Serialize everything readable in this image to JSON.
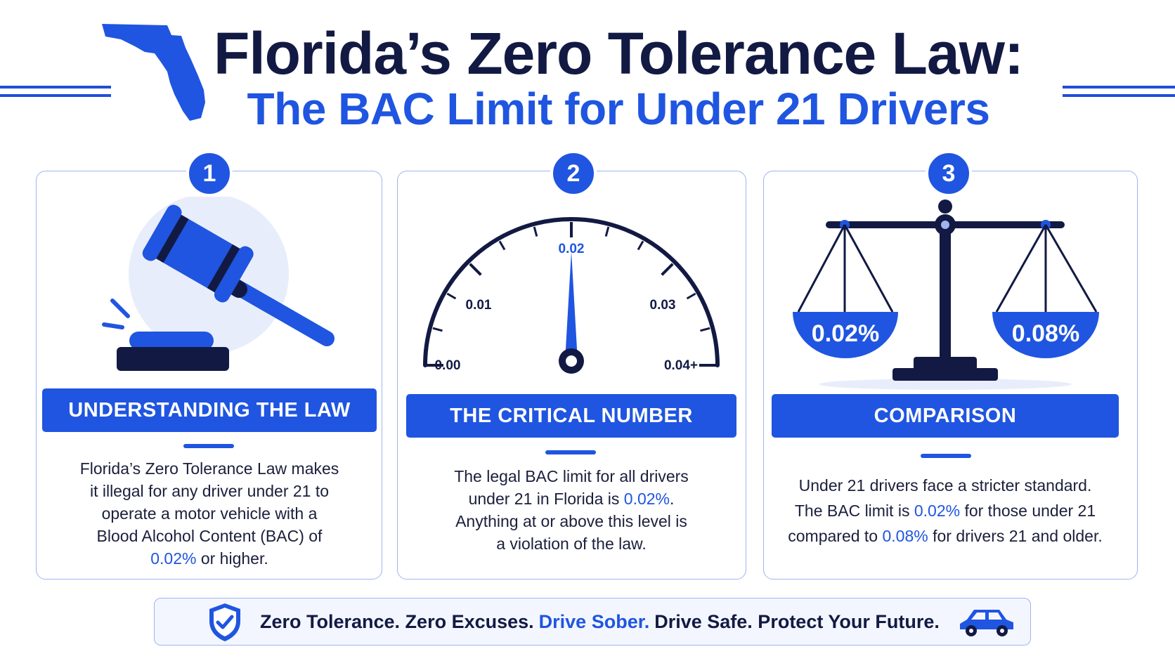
{
  "header": {
    "title": "Florida’s Zero Tolerance Law:",
    "subtitle": "The BAC Limit for Under 21 Drivers"
  },
  "cards": [
    {
      "number": "1",
      "heading": "UNDERSTANDING THE LAW",
      "text_lines": [
        "Florida’s Zero Tolerance Law makes",
        "it illegal for any driver under 21 to",
        "operate a motor vehicle with a",
        "Blood Alcohol Content (BAC) of"
      ],
      "last_line_highlight": "0.02%",
      "last_line_rest": " or higher."
    },
    {
      "number": "2",
      "heading": "THE CRITICAL NUMBER",
      "line1": "The legal BAC limit for all drivers",
      "line2_pre": "under 21 in Florida is ",
      "line2_highlight": "0.02%",
      "line2_post": ".",
      "line3": "Anything at or above this level is",
      "line4": "a violation of the law.",
      "gauge": {
        "labels": [
          "0.00",
          "0.01",
          "0.02",
          "0.03",
          "0.04+"
        ],
        "value": 0.02,
        "min": 0,
        "max": 0.04
      }
    },
    {
      "number": "3",
      "heading": "COMPARISON",
      "line1": "Under 21 drivers face a stricter standard.",
      "line2_pre": "The BAC limit is ",
      "line2_highlight": "0.02%",
      "line2_post": " for those under 21",
      "line3_pre": "compared to ",
      "line3_highlight": "0.08%",
      "line3_post": " for drivers 21 and older.",
      "scale_left": "0.02%",
      "scale_right": "0.08%"
    }
  ],
  "footer": {
    "part1": "Zero Tolerance. Zero Excuses.",
    "part2": "Drive Sober.",
    "part3": "Drive Safe. Protect Your Future."
  },
  "colors": {
    "accent": "#1f55e0",
    "navy": "#121a43",
    "border": "#9fb5f0"
  }
}
